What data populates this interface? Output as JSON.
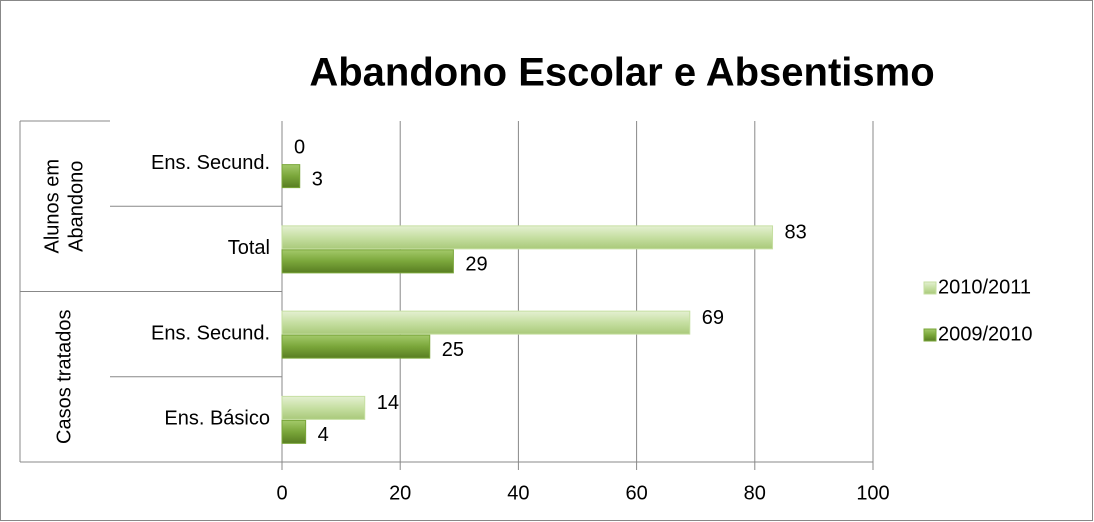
{
  "chart_data": {
    "type": "bar",
    "orientation": "horizontal",
    "title": "Abandono Escolar e Absentismo",
    "categories": [
      "Ens. Secund.",
      "Total",
      "Ens. Secund.",
      "Ens. Básico"
    ],
    "groups": [
      {
        "label_lines": [
          "Alunos em",
          "Abandono"
        ],
        "span": 2
      },
      {
        "label_lines": [
          "Casos tratados"
        ],
        "span": 2
      }
    ],
    "series": [
      {
        "name": "2010/2011",
        "color": "#c6dfa2",
        "values": [
          0,
          83,
          69,
          14
        ]
      },
      {
        "name": "2009/2010",
        "color": "#7aa63a",
        "values": [
          3,
          29,
          25,
          4
        ]
      }
    ],
    "xlim": [
      0,
      100
    ],
    "xticks": [
      0,
      20,
      40,
      60,
      80,
      100
    ],
    "grid": true,
    "legend": "right"
  }
}
